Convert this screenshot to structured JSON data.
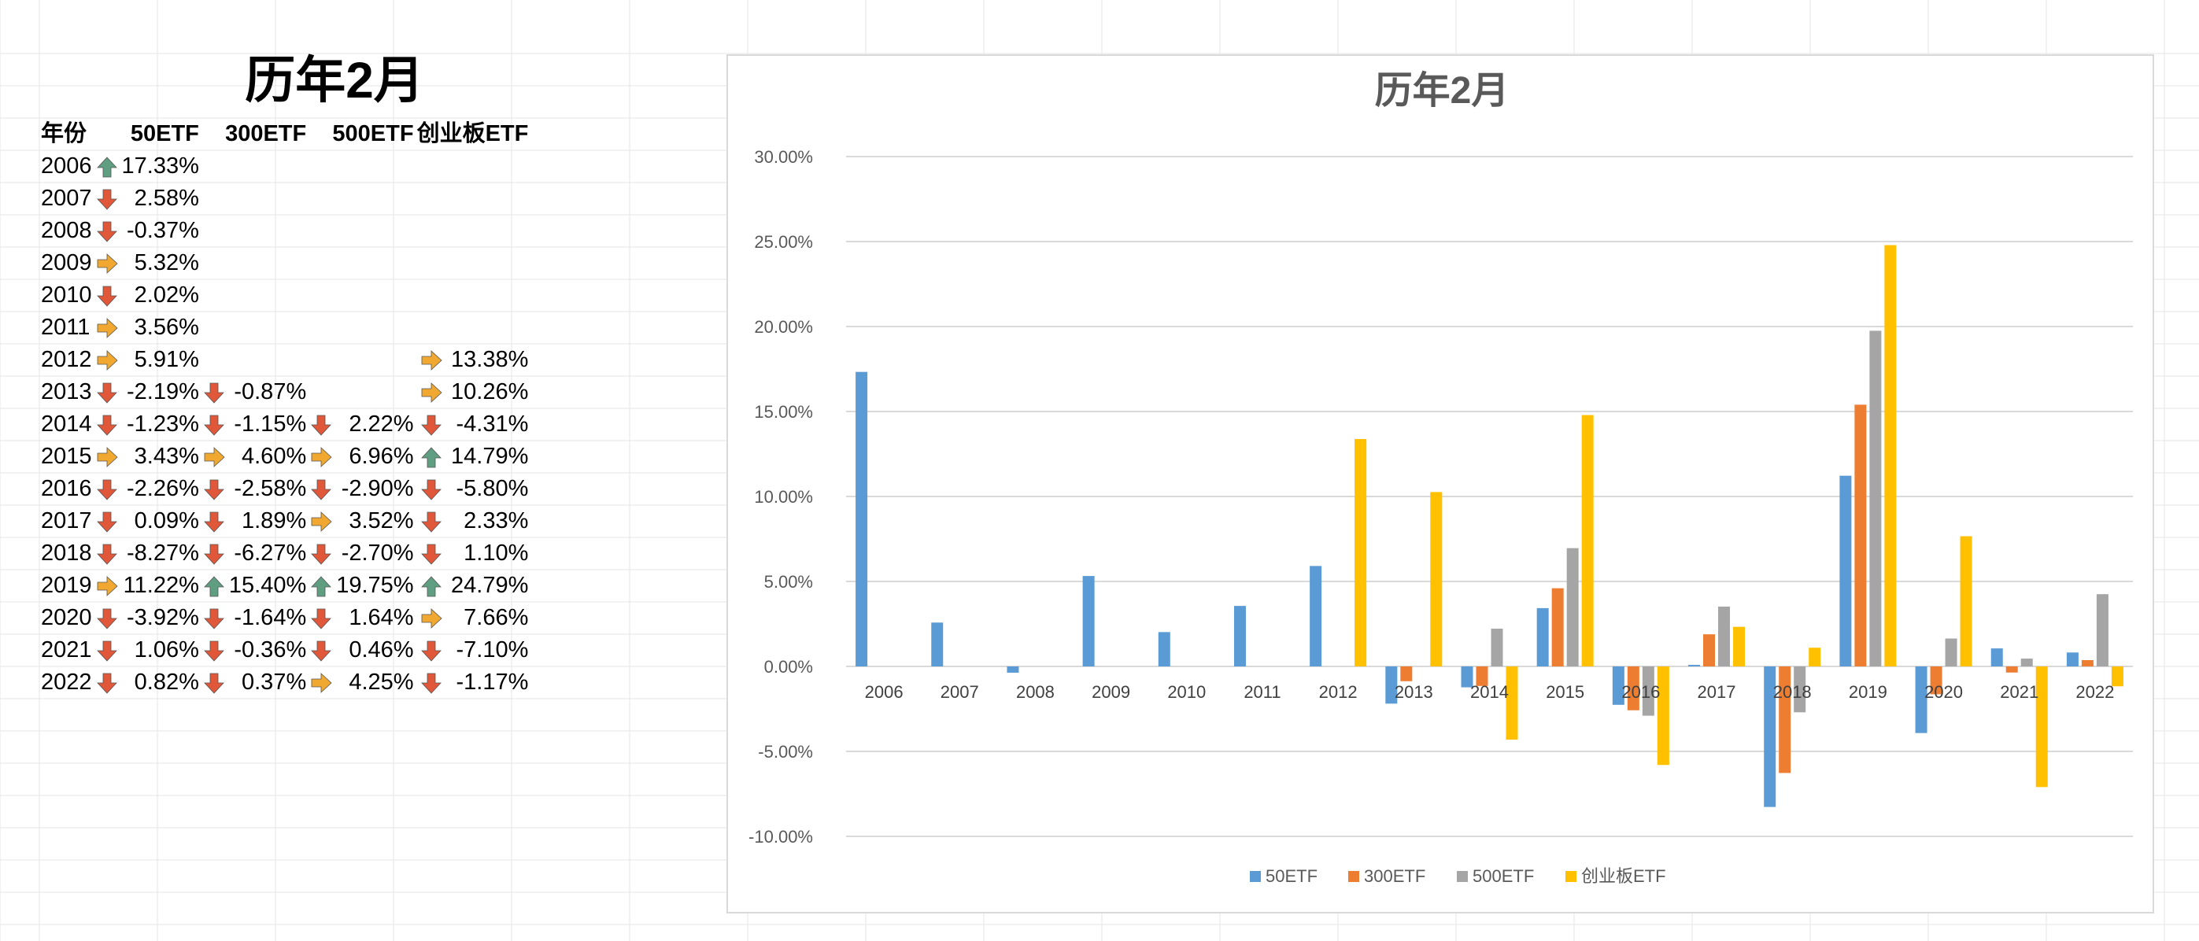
{
  "sheet": {
    "title": "历年2月",
    "headers": {
      "year": "年份",
      "etf50": "50ETF",
      "etf300": "300ETF",
      "etf500": "500ETF",
      "cyb": "创业板ETF"
    },
    "rows": [
      {
        "year": "2006",
        "etf50": {
          "v": "17.33%",
          "icon": "up"
        }
      },
      {
        "year": "2007",
        "etf50": {
          "v": "2.58%",
          "icon": "down"
        }
      },
      {
        "year": "2008",
        "etf50": {
          "v": "-0.37%",
          "icon": "down"
        }
      },
      {
        "year": "2009",
        "etf50": {
          "v": "5.32%",
          "icon": "right"
        }
      },
      {
        "year": "2010",
        "etf50": {
          "v": "2.02%",
          "icon": "down"
        }
      },
      {
        "year": "2011",
        "etf50": {
          "v": "3.56%",
          "icon": "right"
        }
      },
      {
        "year": "2012",
        "etf50": {
          "v": "5.91%",
          "icon": "right"
        },
        "cyb": {
          "v": "13.38%",
          "icon": "right"
        }
      },
      {
        "year": "2013",
        "etf50": {
          "v": "-2.19%",
          "icon": "down"
        },
        "etf300": {
          "v": "-0.87%",
          "icon": "down"
        },
        "cyb": {
          "v": "10.26%",
          "icon": "right"
        }
      },
      {
        "year": "2014",
        "etf50": {
          "v": "-1.23%",
          "icon": "down"
        },
        "etf300": {
          "v": "-1.15%",
          "icon": "down"
        },
        "etf500": {
          "v": "2.22%",
          "icon": "down"
        },
        "cyb": {
          "v": "-4.31%",
          "icon": "down"
        }
      },
      {
        "year": "2015",
        "etf50": {
          "v": "3.43%",
          "icon": "right"
        },
        "etf300": {
          "v": "4.60%",
          "icon": "right"
        },
        "etf500": {
          "v": "6.96%",
          "icon": "right"
        },
        "cyb": {
          "v": "14.79%",
          "icon": "up"
        }
      },
      {
        "year": "2016",
        "etf50": {
          "v": "-2.26%",
          "icon": "down"
        },
        "etf300": {
          "v": "-2.58%",
          "icon": "down"
        },
        "etf500": {
          "v": "-2.90%",
          "icon": "down"
        },
        "cyb": {
          "v": "-5.80%",
          "icon": "down"
        }
      },
      {
        "year": "2017",
        "etf50": {
          "v": "0.09%",
          "icon": "down"
        },
        "etf300": {
          "v": "1.89%",
          "icon": "down"
        },
        "etf500": {
          "v": "3.52%",
          "icon": "right"
        },
        "cyb": {
          "v": "2.33%",
          "icon": "down"
        }
      },
      {
        "year": "2018",
        "etf50": {
          "v": "-8.27%",
          "icon": "down"
        },
        "etf300": {
          "v": "-6.27%",
          "icon": "down"
        },
        "etf500": {
          "v": "-2.70%",
          "icon": "down"
        },
        "cyb": {
          "v": "1.10%",
          "icon": "down"
        }
      },
      {
        "year": "2019",
        "etf50": {
          "v": "11.22%",
          "icon": "right"
        },
        "etf300": {
          "v": "15.40%",
          "icon": "up"
        },
        "etf500": {
          "v": "19.75%",
          "icon": "up"
        },
        "cyb": {
          "v": "24.79%",
          "icon": "up"
        }
      },
      {
        "year": "2020",
        "etf50": {
          "v": "-3.92%",
          "icon": "down"
        },
        "etf300": {
          "v": "-1.64%",
          "icon": "down"
        },
        "etf500": {
          "v": "1.64%",
          "icon": "down"
        },
        "cyb": {
          "v": "7.66%",
          "icon": "right"
        }
      },
      {
        "year": "2021",
        "etf50": {
          "v": "1.06%",
          "icon": "down"
        },
        "etf300": {
          "v": "-0.36%",
          "icon": "down"
        },
        "etf500": {
          "v": "0.46%",
          "icon": "down"
        },
        "cyb": {
          "v": "-7.10%",
          "icon": "down"
        }
      },
      {
        "year": "2022",
        "etf50": {
          "v": "0.82%",
          "icon": "down"
        },
        "etf300": {
          "v": "0.37%",
          "icon": "down"
        },
        "etf500": {
          "v": "4.25%",
          "icon": "right"
        },
        "cyb": {
          "v": "-1.17%",
          "icon": "down"
        }
      }
    ]
  },
  "icon_colors": {
    "up": "#5f9e80",
    "down": "#e0573a",
    "right": "#f0a830"
  },
  "chart_data": {
    "type": "bar",
    "title": "历年2月",
    "categories": [
      "2006",
      "2007",
      "2008",
      "2009",
      "2010",
      "2011",
      "2012",
      "2013",
      "2014",
      "2015",
      "2016",
      "2017",
      "2018",
      "2019",
      "2020",
      "2021",
      "2022"
    ],
    "series": [
      {
        "name": "50ETF",
        "color": "#5b9bd5",
        "values": [
          17.33,
          2.58,
          -0.37,
          5.32,
          2.02,
          3.56,
          5.91,
          -2.19,
          -1.23,
          3.43,
          -2.26,
          0.09,
          -8.27,
          11.22,
          -3.92,
          1.06,
          0.82
        ]
      },
      {
        "name": "300ETF",
        "color": "#ed7d31",
        "values": [
          null,
          null,
          null,
          null,
          null,
          null,
          null,
          -0.87,
          -1.15,
          4.6,
          -2.58,
          1.89,
          -6.27,
          15.4,
          -1.64,
          -0.36,
          0.37
        ]
      },
      {
        "name": "500ETF",
        "color": "#a5a5a5",
        "values": [
          null,
          null,
          null,
          null,
          null,
          null,
          null,
          null,
          2.22,
          6.96,
          -2.9,
          3.52,
          -2.7,
          19.75,
          1.64,
          0.46,
          4.25
        ]
      },
      {
        "name": "创业板ETF",
        "color": "#ffc000",
        "values": [
          null,
          null,
          null,
          null,
          null,
          null,
          13.38,
          10.26,
          -4.31,
          14.79,
          -5.8,
          2.33,
          1.1,
          24.79,
          7.66,
          -7.1,
          -1.17
        ]
      }
    ],
    "ylim": [
      -10,
      30
    ],
    "yticks": [
      "30.00%",
      "25.00%",
      "20.00%",
      "15.00%",
      "10.00%",
      "5.00%",
      "0.00%",
      "-5.00%",
      "-10.00%"
    ],
    "grid": true,
    "legend_position": "bottom"
  }
}
